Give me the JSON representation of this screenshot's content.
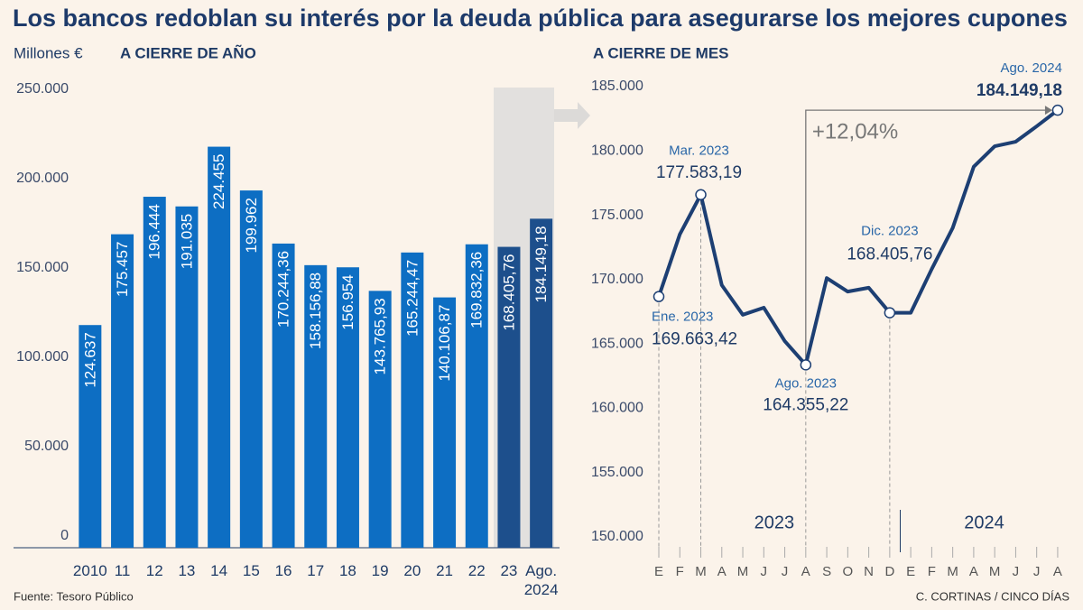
{
  "title": "Los bancos redoblan su interés por la deuda pública para asegurarse los mejores cupones",
  "source": "Fuente: Tesoro Público",
  "credit": "C. CORTINAS / CINCO DÍAS",
  "chart_data": [
    {
      "type": "bar",
      "subtitle": "A CIERRE DE AÑO",
      "y_label": "Millones €",
      "categories": [
        "2010",
        "11",
        "12",
        "13",
        "14",
        "15",
        "16",
        "17",
        "18",
        "19",
        "20",
        "21",
        "22",
        "23",
        "Ago. 2024"
      ],
      "values": [
        124637,
        175457,
        196444,
        191035,
        224455,
        199962,
        170244.36,
        158156.88,
        156954,
        143765.93,
        165244.47,
        140106.87,
        169832.36,
        168405.76,
        184149.18
      ],
      "value_labels": [
        "124.637",
        "175.457",
        "196.444",
        "191.035",
        "224.455",
        "199.962",
        "170.244,36",
        "158.156,88",
        "156.954",
        "143.765,93",
        "165.244,47",
        "140.106,87",
        "169.832,36",
        "168.405,76",
        "184.149,18"
      ],
      "colors": [
        "#0d6ec3",
        "#0d6ec3",
        "#0d6ec3",
        "#0d6ec3",
        "#0d6ec3",
        "#0d6ec3",
        "#0d6ec3",
        "#0d6ec3",
        "#0d6ec3",
        "#0d6ec3",
        "#0d6ec3",
        "#0d6ec3",
        "#0d6ec3",
        "#1d4f8c",
        "#1d4f8c"
      ],
      "ylim": [
        0,
        250000
      ],
      "yticks": [
        0,
        {
          "value": 50000,
          "label": "50.000"
        },
        {
          "value": 100000,
          "label": "100.000"
        },
        {
          "value": 150000,
          "label": "150.000"
        },
        {
          "value": 200000,
          "label": "200.000"
        },
        {
          "value": 250000,
          "label": "250.000"
        }
      ]
    },
    {
      "type": "line",
      "subtitle": "A CIERRE DE MES",
      "color": "#1d3f73",
      "groups": [
        {
          "label": "2023",
          "categories": [
            "E",
            "F",
            "M",
            "A",
            "M",
            "J",
            "J",
            "A",
            "S",
            "O",
            "N",
            "D"
          ]
        },
        {
          "label": "2024",
          "categories": [
            "E",
            "F",
            "M",
            "A",
            "M",
            "J",
            "J",
            "A"
          ]
        }
      ],
      "values": [
        169663.42,
        174500,
        177583.19,
        170550,
        168250,
        168800,
        166200,
        164355.22,
        171100,
        170050,
        170350,
        168405.76,
        168400,
        171800,
        175000,
        179750,
        181350,
        181700,
        182900,
        184149.18
      ],
      "point_labels": [
        "Ene. 2023",
        null,
        "Mar. 2023",
        null,
        null,
        null,
        null,
        "Ago. 2023",
        null,
        null,
        null,
        "Dic. 2023",
        null,
        null,
        null,
        null,
        null,
        null,
        null,
        "Ago. 2024"
      ],
      "value_labels": [
        "169.663,42",
        null,
        "177.583,19",
        null,
        null,
        null,
        null,
        "164.355,22",
        null,
        null,
        null,
        "168.405,76",
        null,
        null,
        null,
        null,
        null,
        null,
        null,
        "184.149,18"
      ],
      "change_label": "+12,04%",
      "ylim": [
        150000,
        185000
      ],
      "yticks": [
        {
          "value": 150000,
          "label": "150.000"
        },
        {
          "value": 155000,
          "label": "155.000"
        },
        {
          "value": 160000,
          "label": "160.000"
        },
        {
          "value": 165000,
          "label": "165.000"
        },
        {
          "value": 170000,
          "label": "170.000"
        },
        {
          "value": 175000,
          "label": "175.000"
        },
        {
          "value": 180000,
          "label": "180.000"
        },
        {
          "value": 185000,
          "label": "185.000"
        }
      ]
    }
  ]
}
